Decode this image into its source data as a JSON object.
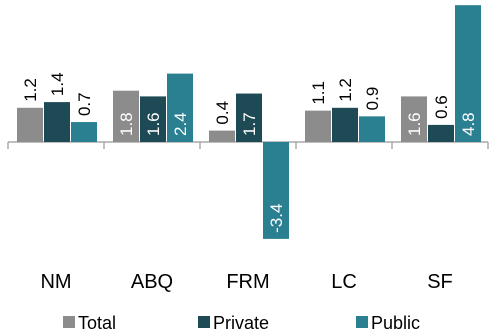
{
  "chart_data": {
    "type": "bar",
    "categories": [
      "NM",
      "ABQ",
      "FRM",
      "LC",
      "SF"
    ],
    "series": [
      {
        "name": "Total",
        "color": "#8c8c8c",
        "values": [
          1.2,
          1.8,
          0.4,
          1.1,
          1.6
        ]
      },
      {
        "name": "Private",
        "color": "#1e4a55",
        "values": [
          1.4,
          1.6,
          1.7,
          1.2,
          0.6
        ]
      },
      {
        "name": "Public",
        "color": "#2a7f91",
        "values": [
          0.7,
          2.4,
          -3.4,
          0.9,
          4.8
        ]
      }
    ],
    "value_labels": [
      [
        "1.2",
        "1.8",
        "0.4",
        "1.1",
        "1.6"
      ],
      [
        "1.4",
        "1.6",
        "1.7",
        "1.2",
        "0.6"
      ],
      [
        "0.7",
        "2.4",
        "-3.4",
        "0.9",
        "4.8"
      ]
    ],
    "ylim": [
      -3.4,
      4.8
    ],
    "legend_position": "bottom",
    "grid": false
  }
}
